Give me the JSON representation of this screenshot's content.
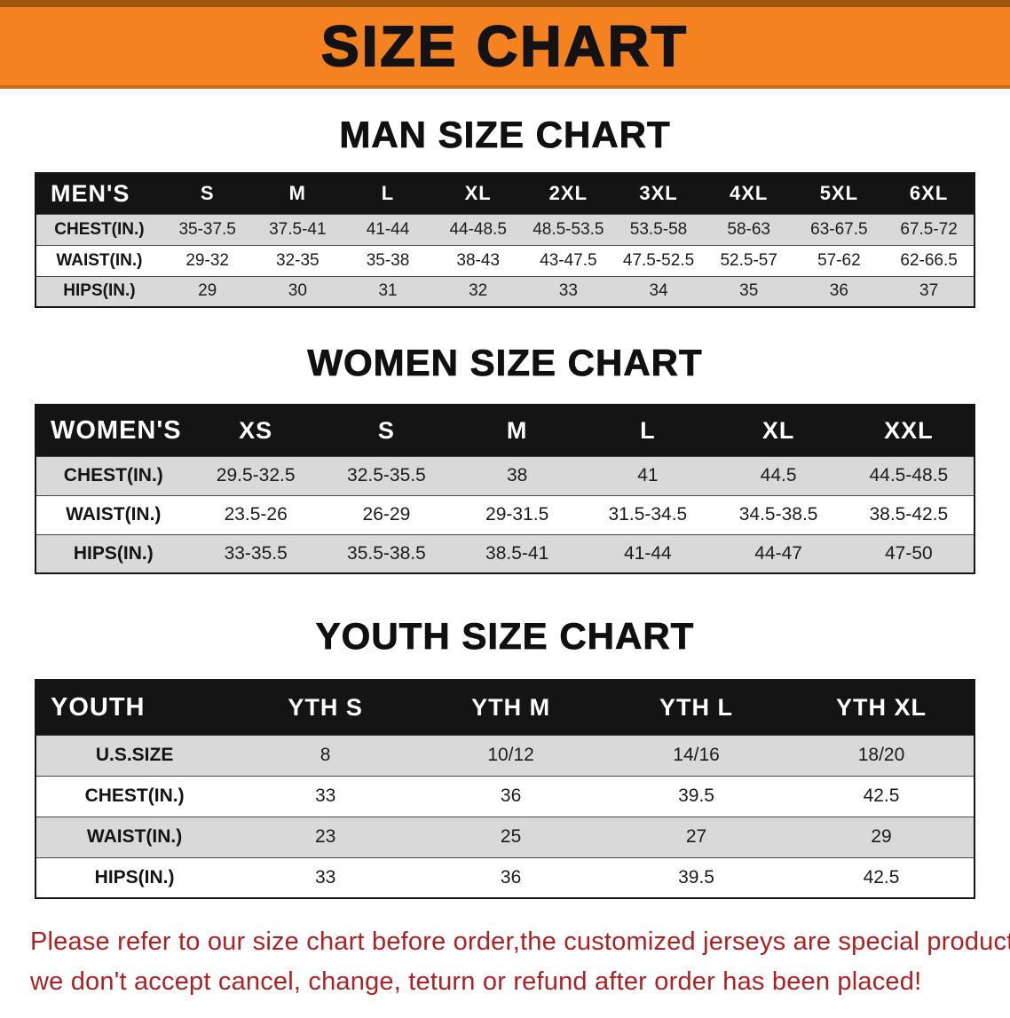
{
  "banner": {
    "title": "SIZE CHART"
  },
  "colors": {
    "banner_bg": "#f58220",
    "banner_edge": "#c96d12",
    "banner_edge_dark": "#9d540c",
    "header_bg": "#141414",
    "row_alt": "#d9d9d9",
    "note_red": "#ae2023"
  },
  "men": {
    "heading": "MAN SIZE CHART",
    "table": {
      "header": [
        "MEN'S",
        "S",
        "M",
        "L",
        "XL",
        "2XL",
        "3XL",
        "4XL",
        "5XL",
        "6XL"
      ],
      "rows": [
        [
          "CHEST(IN.)",
          "35-37.5",
          "37.5-41",
          "41-44",
          "44-48.5",
          "48.5-53.5",
          "53.5-58",
          "58-63",
          "63-67.5",
          "67.5-72"
        ],
        [
          "WAIST(IN.)",
          "29-32",
          "32-35",
          "35-38",
          "38-43",
          "43-47.5",
          "47.5-52.5",
          "52.5-57",
          "57-62",
          "62-66.5"
        ],
        [
          "HIPS(IN.)",
          "29",
          "30",
          "31",
          "32",
          "33",
          "34",
          "35",
          "36",
          "37"
        ]
      ]
    }
  },
  "women": {
    "heading": "WOMEN SIZE CHART",
    "table": {
      "header": [
        "WOMEN'S",
        "XS",
        "S",
        "M",
        "L",
        "XL",
        "XXL"
      ],
      "rows": [
        [
          "CHEST(IN.)",
          "29.5-32.5",
          "32.5-35.5",
          "38",
          "41",
          "44.5",
          "44.5-48.5"
        ],
        [
          "WAIST(IN.)",
          "23.5-26",
          "26-29",
          "29-31.5",
          "31.5-34.5",
          "34.5-38.5",
          "38.5-42.5"
        ],
        [
          "HIPS(IN.)",
          "33-35.5",
          "35.5-38.5",
          "38.5-41",
          "41-44",
          "44-47",
          "47-50"
        ]
      ]
    }
  },
  "youth": {
    "heading": "YOUTH SIZE CHART",
    "table": {
      "header": [
        "YOUTH",
        "YTH S",
        "YTH M",
        "YTH L",
        "YTH XL"
      ],
      "rows": [
        [
          "U.S.SIZE",
          "8",
          "10/12",
          "14/16",
          "18/20"
        ],
        [
          "CHEST(IN.)",
          "33",
          "36",
          "39.5",
          "42.5"
        ],
        [
          "WAIST(IN.)",
          "23",
          "25",
          "27",
          "29"
        ],
        [
          "HIPS(IN.)",
          "33",
          "36",
          "39.5",
          "42.5"
        ]
      ]
    }
  },
  "note": {
    "line1": "Please refer to our size chart before order,the customized jerseys are special products,",
    "line2": "we don't accept cancel, change, teturn or refund after order has been placed!"
  }
}
